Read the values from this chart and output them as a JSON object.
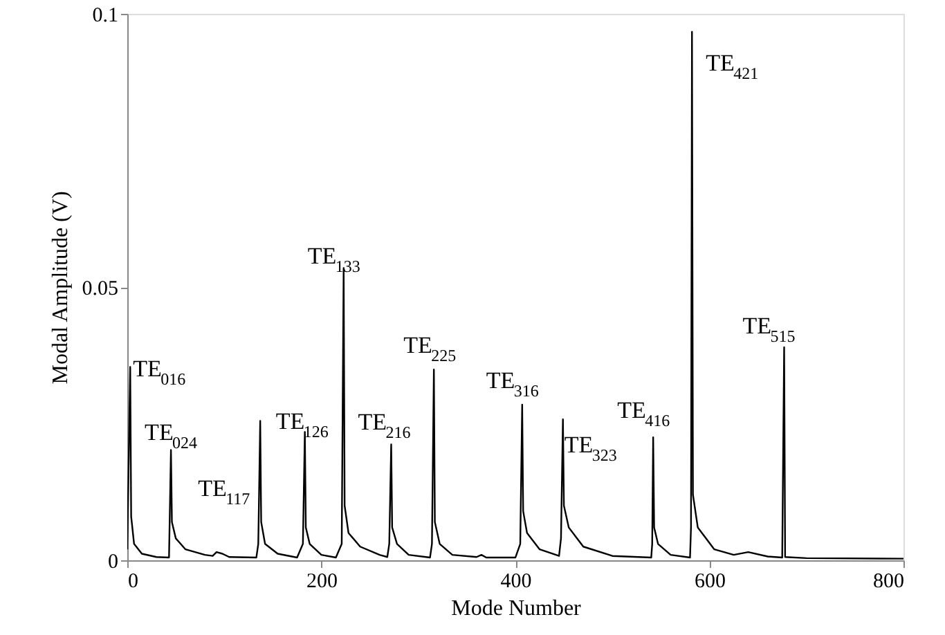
{
  "chart_data": {
    "type": "line",
    "xlabel": "Mode Number",
    "ylabel": "Modal Amplitude (V)",
    "xlim": [
      0,
      800
    ],
    "xticks": [
      0,
      200,
      400,
      600,
      800
    ],
    "ylim": [
      0,
      0.1
    ],
    "yticks": [
      0,
      0.05,
      0.1
    ],
    "grid": false,
    "line_style": "solid",
    "series": [
      {
        "color": "#000000",
        "x": [
          0,
          3,
          4,
          7,
          15,
          30,
          43,
          45,
          46,
          50,
          60,
          80,
          88,
          92,
          98,
          105,
          133,
          135,
          137,
          138,
          142,
          155,
          175,
          181,
          183,
          184,
          188,
          200,
          215,
          221,
          223,
          224,
          228,
          240,
          260,
          268,
          270,
          272,
          273,
          278,
          290,
          312,
          314,
          316,
          317,
          322,
          335,
          360,
          365,
          370,
          400,
          405,
          407,
          408,
          412,
          425,
          445,
          447,
          449,
          450,
          455,
          470,
          500,
          540,
          541,
          542,
          543,
          547,
          560,
          580,
          581,
          582,
          583,
          588,
          605,
          625,
          640,
          660,
          675,
          677,
          678,
          700,
          800
        ],
        "values": [
          0.002,
          0.0354,
          0.008,
          0.003,
          0.0012,
          0.0006,
          0.0005,
          0.0202,
          0.007,
          0.004,
          0.002,
          0.001,
          0.0008,
          0.0015,
          0.0012,
          0.0006,
          0.0005,
          0.003,
          0.0255,
          0.007,
          0.003,
          0.0012,
          0.0005,
          0.003,
          0.0235,
          0.006,
          0.003,
          0.001,
          0.0005,
          0.003,
          0.0535,
          0.01,
          0.005,
          0.0025,
          0.001,
          0.0006,
          0.003,
          0.0212,
          0.006,
          0.003,
          0.001,
          0.0005,
          0.003,
          0.0349,
          0.007,
          0.003,
          0.001,
          0.0006,
          0.001,
          0.0005,
          0.0005,
          0.003,
          0.0285,
          0.009,
          0.005,
          0.002,
          0.0008,
          0.004,
          0.0258,
          0.01,
          0.006,
          0.0025,
          0.0008,
          0.0005,
          0.003,
          0.0225,
          0.006,
          0.003,
          0.001,
          0.0005,
          0.006,
          0.0967,
          0.012,
          0.006,
          0.002,
          0.001,
          0.0015,
          0.0007,
          0.0005,
          0.039,
          0.0006,
          0.0004,
          0.0003
        ]
      }
    ],
    "annotations": [
      {
        "text": "TE$_{016}$",
        "x": 3,
        "y": 0.0354
      },
      {
        "text": "TE$_{024}$",
        "x": 45,
        "y": 0.0202
      },
      {
        "text": "TE$_{117}$",
        "x": 137,
        "y": 0.0255
      },
      {
        "text": "TE$_{126}$",
        "x": 183,
        "y": 0.0235
      },
      {
        "text": "TE$_{133}$",
        "x": 223,
        "y": 0.0535
      },
      {
        "text": "TE$_{216}$",
        "x": 272,
        "y": 0.0212
      },
      {
        "text": "TE$_{225}$",
        "x": 316,
        "y": 0.0349
      },
      {
        "text": "TE$_{316}$",
        "x": 407,
        "y": 0.0285
      },
      {
        "text": "TE$_{323}$",
        "x": 449,
        "y": 0.0258
      },
      {
        "text": "TE$_{416}$",
        "x": 542,
        "y": 0.0225
      },
      {
        "text": "TE$_{421}$",
        "x": 582,
        "y": 0.0967
      },
      {
        "text": "TE$_{515}$",
        "x": 677,
        "y": 0.039
      }
    ]
  }
}
